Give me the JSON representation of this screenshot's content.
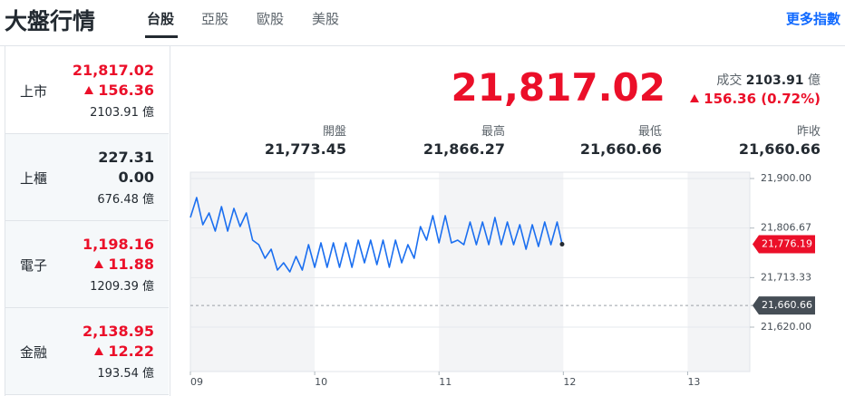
{
  "header": {
    "title": "大盤行情",
    "tabs": [
      "台股",
      "亞股",
      "歐股",
      "美股"
    ],
    "active_tab": 0,
    "more_link": "更多指數"
  },
  "sidebar": [
    {
      "name": "上市",
      "price": "21,817.02",
      "change": "156.36",
      "volume": "2103.91 億",
      "direction": "up"
    },
    {
      "name": "上櫃",
      "price": "227.31",
      "change": "0.00",
      "volume": "676.48 億",
      "direction": "flat"
    },
    {
      "name": "電子",
      "price": "1,198.16",
      "change": "11.88",
      "volume": "1209.39 億",
      "direction": "up"
    },
    {
      "name": "金融",
      "price": "2,138.95",
      "change": "12.22",
      "volume": "193.54 億",
      "direction": "up"
    }
  ],
  "quote": {
    "price": "21,817.02",
    "volume_label": "成交",
    "volume": "2103.91",
    "volume_unit": "億",
    "change": "156.36 (0.72%)",
    "direction": "up"
  },
  "stats": [
    {
      "label": "開盤",
      "value": "21,773.45"
    },
    {
      "label": "最高",
      "value": "21,866.27"
    },
    {
      "label": "最低",
      "value": "21,660.66"
    },
    {
      "label": "昨收",
      "value": "21,660.66"
    }
  ],
  "chart_data": {
    "type": "line",
    "color": "#1b6ff0",
    "grid": true,
    "x": [
      9.0,
      9.05,
      9.1,
      9.15,
      9.2,
      9.25,
      9.3,
      9.35,
      9.4,
      9.45,
      9.5,
      9.55,
      9.6,
      9.65,
      9.7,
      9.75,
      9.8,
      9.85,
      9.9,
      9.95,
      10.0,
      10.05,
      10.1,
      10.15,
      10.2,
      10.25,
      10.3,
      10.35,
      10.4,
      10.45,
      10.5,
      10.55,
      10.6,
      10.65,
      10.7,
      10.75,
      10.8,
      10.85,
      10.9,
      10.95,
      11.0,
      11.05,
      11.1,
      11.15,
      11.2,
      11.25,
      11.3,
      11.35,
      11.4,
      11.45,
      11.5,
      11.55,
      11.6,
      11.65,
      11.7,
      11.75,
      11.8,
      11.85,
      11.9,
      11.95,
      11.99
    ],
    "values": [
      21826.6,
      21864.1,
      21812.9,
      21835.1,
      21801.0,
      21847.1,
      21801.0,
      21843.7,
      21809.5,
      21835.1,
      21783.9,
      21775.4,
      21749.8,
      21766.8,
      21727.6,
      21741.2,
      21724.1,
      21753.2,
      21727.6,
      21775.4,
      21732.7,
      21778.8,
      21732.7,
      21778.8,
      21732.7,
      21778.8,
      21732.7,
      21783.9,
      21741.2,
      21783.9,
      21737.8,
      21783.9,
      21732.7,
      21783.9,
      21741.2,
      21775.4,
      21749.8,
      21809.5,
      21783.9,
      21830.0,
      21778.8,
      21830.0,
      21778.8,
      21783.9,
      21775.4,
      21818.0,
      21775.4,
      21818.0,
      21775.4,
      21826.6,
      21775.4,
      21818.0,
      21775.4,
      21812.9,
      21766.8,
      21812.9,
      21772.0,
      21818.0,
      21775.4,
      21818.0,
      21776.19
    ],
    "xlim": [
      9,
      13.5
    ],
    "xticks": [
      {
        "value": 9,
        "label": "09"
      },
      {
        "value": 10,
        "label": "10"
      },
      {
        "value": 11,
        "label": "11"
      },
      {
        "value": 12,
        "label": "12"
      },
      {
        "value": 13,
        "label": "13"
      }
    ],
    "ylim": [
      21620,
      21900
    ],
    "yticks": [
      {
        "value": 21900,
        "label": "21,900.00"
      },
      {
        "value": 21806.67,
        "label": "21,806.67"
      },
      {
        "value": 21713.33,
        "label": "21,713.33"
      },
      {
        "value": 21620,
        "label": "21,620.00"
      }
    ],
    "current": {
      "value": 21776.19,
      "label": "21,776.19",
      "color": "#eb0f29"
    },
    "previous_close": {
      "value": 21660.66,
      "label": "21,660.66",
      "color": "#464e56"
    }
  }
}
